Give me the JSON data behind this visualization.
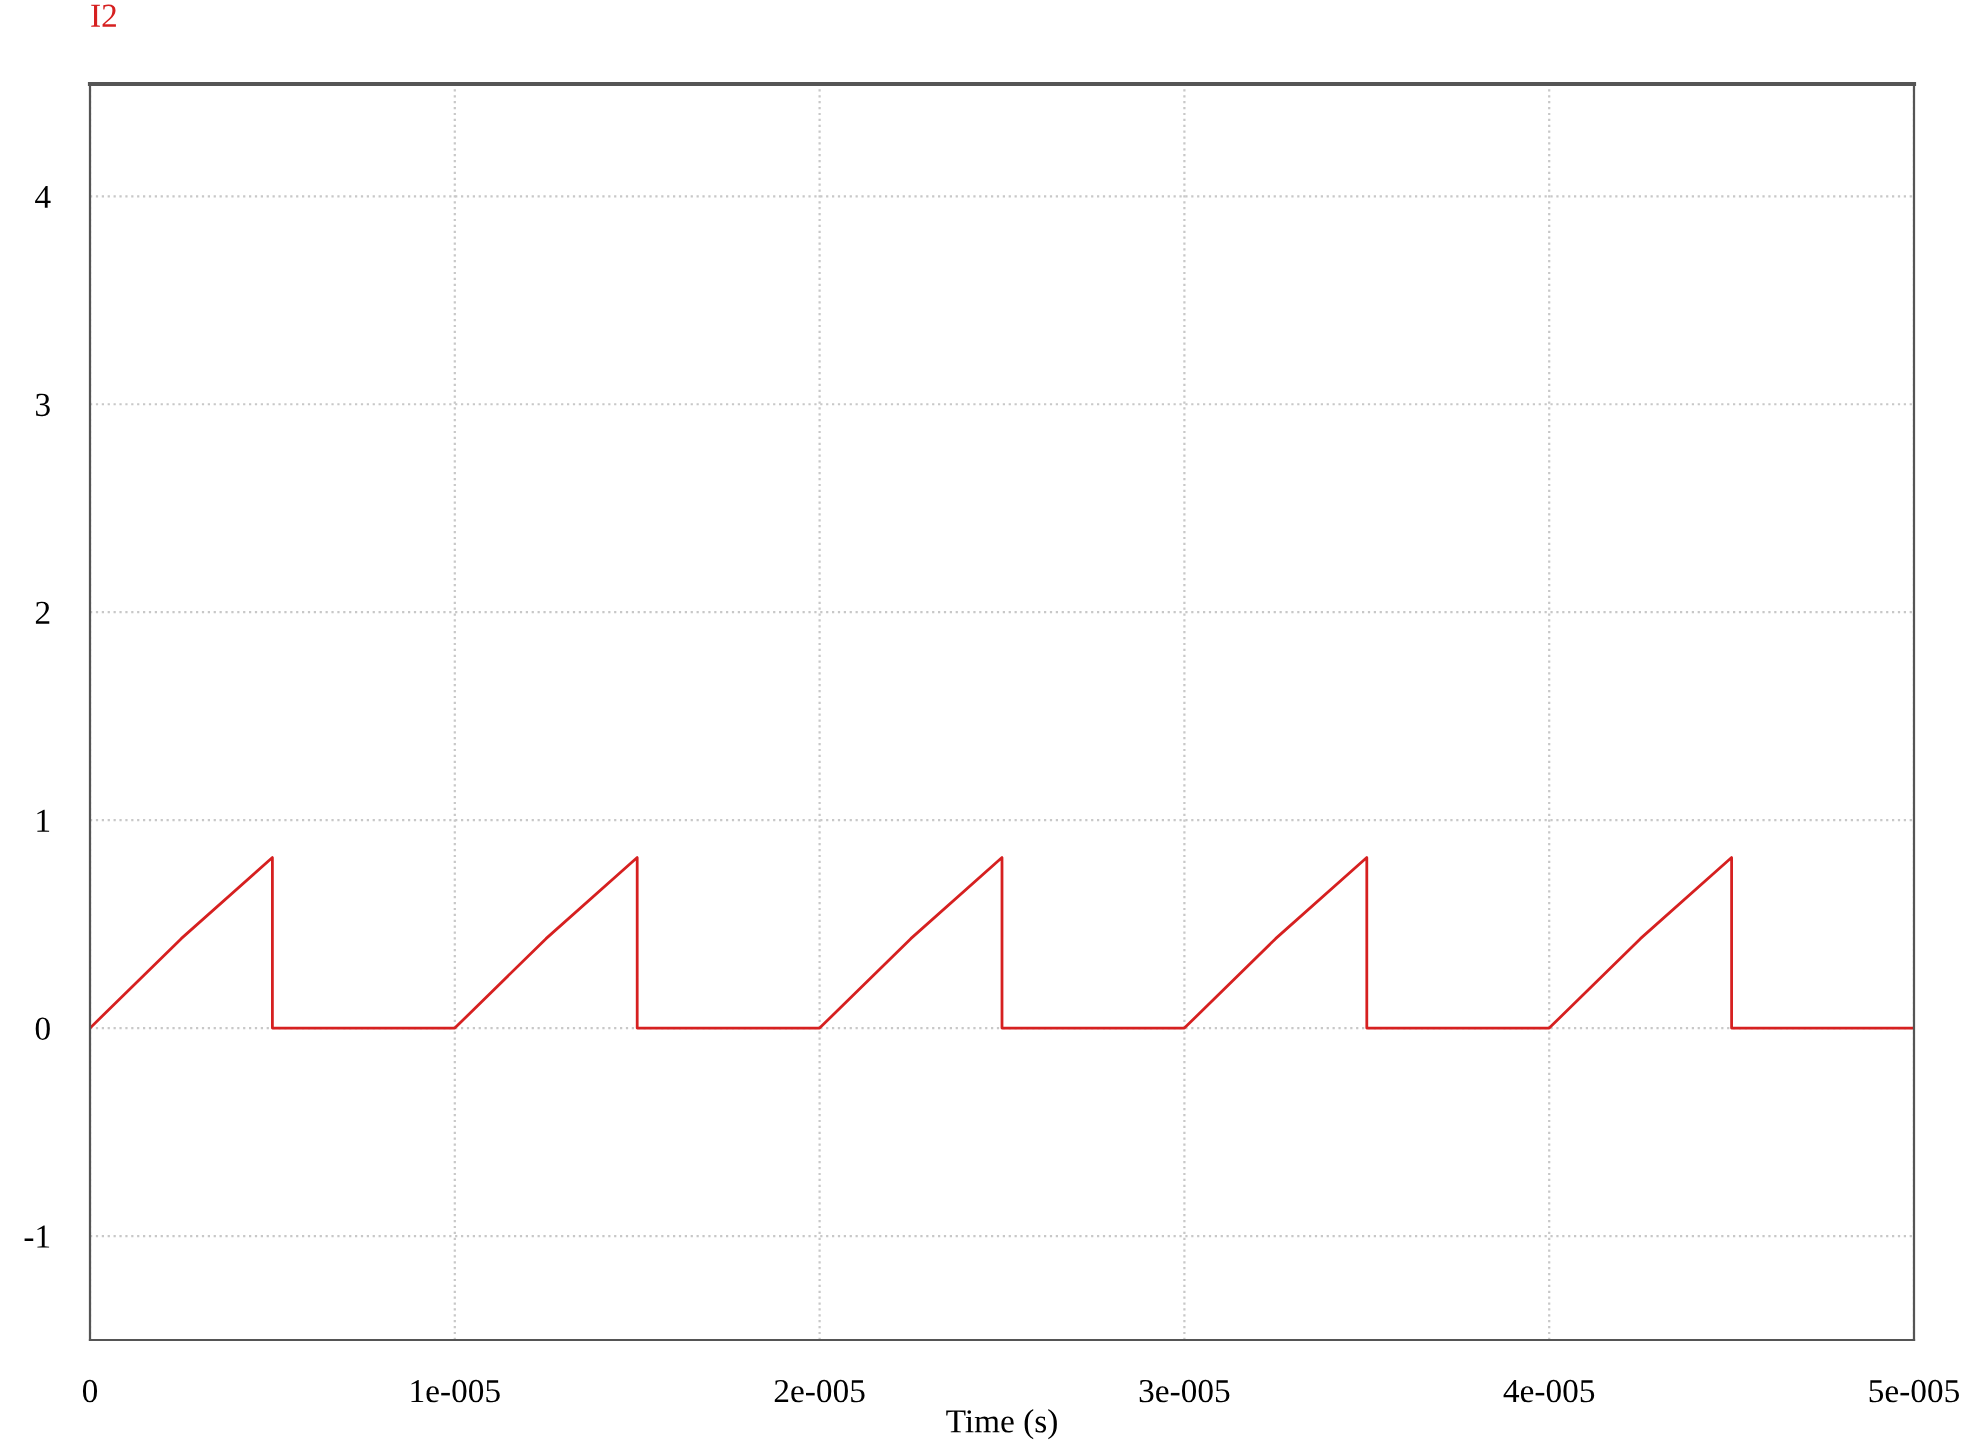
{
  "chart_data": {
    "type": "line",
    "xlabel": "Time (s)",
    "series": [
      {
        "name": "I2",
        "color": "#d62020",
        "x": [
          0,
          2.5e-06,
          5e-06,
          5e-06,
          1e-05,
          1.25e-05,
          1.5e-05,
          1.5e-05,
          2e-05,
          2.25e-05,
          2.5e-05,
          2.5e-05,
          3e-05,
          3.25e-05,
          3.5e-05,
          3.5e-05,
          4e-05,
          4.25e-05,
          4.5e-05,
          4.5e-05,
          5e-05
        ],
        "values": [
          0,
          0.43,
          0.82,
          0,
          0,
          0.43,
          0.82,
          0,
          0,
          0.43,
          0.82,
          0,
          0,
          0.43,
          0.82,
          0,
          0,
          0.43,
          0.82,
          0,
          0
        ]
      }
    ],
    "xlim": [
      0,
      5e-05
    ],
    "xticks": [
      0,
      {
        "value": 1e-05,
        "label": "1e-005"
      },
      {
        "value": 2e-05,
        "label": "2e-005"
      },
      {
        "value": 3e-05,
        "label": "3e-005"
      },
      {
        "value": 4e-05,
        "label": "4e-005"
      },
      {
        "value": 5e-05,
        "label": "5e-005"
      }
    ],
    "ylim": [
      -1.5,
      4.54
    ],
    "yticks": [
      -1,
      0,
      1,
      2,
      3,
      4
    ],
    "grid": true,
    "marker": "none",
    "line_style": "solid"
  }
}
